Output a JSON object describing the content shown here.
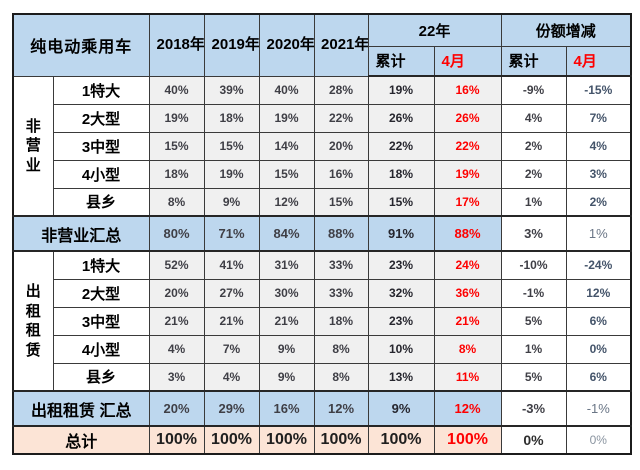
{
  "colors": {
    "header_bg": "#bdd7ee",
    "subtotal_bg": "#bdd7ee",
    "total_bg": "#fce4d6",
    "value_cell_bg": "#f0f0f0",
    "share_cell_bg": "#ffffff",
    "border": "#3a3a3a",
    "value_text": "#3f3f46",
    "red_text": "#fe0000"
  },
  "chart_data": {
    "type": "table",
    "title": "纯电动乘用车",
    "header": {
      "years": [
        "2018年",
        "2019年",
        "2020年",
        "2021年"
      ],
      "group_22": {
        "label": "22年",
        "sub": [
          "累计",
          "4月"
        ]
      },
      "group_share": {
        "label": "份额增减",
        "sub": [
          "累计",
          "4月"
        ]
      }
    },
    "columns": [
      "2018年",
      "2019年",
      "2020年",
      "2021年",
      "22年 累计",
      "22年 4月",
      "份额增减 累计",
      "份额增减 4月"
    ],
    "row_groups": [
      {
        "group_label": "非营业",
        "rows": [
          {
            "label": "1特大",
            "values": [
              "40%",
              "39%",
              "40%",
              "28%",
              "19%",
              "16%",
              "-9%",
              "-15%"
            ]
          },
          {
            "label": "2大型",
            "values": [
              "19%",
              "18%",
              "19%",
              "22%",
              "26%",
              "26%",
              "4%",
              "7%"
            ]
          },
          {
            "label": "3中型",
            "values": [
              "15%",
              "15%",
              "14%",
              "20%",
              "22%",
              "22%",
              "2%",
              "4%"
            ]
          },
          {
            "label": "4小型",
            "values": [
              "18%",
              "19%",
              "15%",
              "16%",
              "18%",
              "19%",
              "2%",
              "3%"
            ]
          },
          {
            "label": "县乡",
            "values": [
              "8%",
              "9%",
              "12%",
              "15%",
              "15%",
              "17%",
              "1%",
              "2%"
            ]
          }
        ],
        "subtotal": {
          "label": "非营业汇总",
          "values": [
            "80%",
            "71%",
            "84%",
            "88%",
            "91%",
            "88%",
            "3%",
            "1%"
          ]
        }
      },
      {
        "group_label": "出租租赁",
        "rows": [
          {
            "label": "1特大",
            "values": [
              "52%",
              "41%",
              "31%",
              "33%",
              "23%",
              "24%",
              "-10%",
              "-24%"
            ]
          },
          {
            "label": "2大型",
            "values": [
              "20%",
              "27%",
              "30%",
              "33%",
              "32%",
              "36%",
              "-1%",
              "12%"
            ]
          },
          {
            "label": "3中型",
            "values": [
              "21%",
              "21%",
              "21%",
              "18%",
              "23%",
              "21%",
              "5%",
              "6%"
            ]
          },
          {
            "label": "4小型",
            "values": [
              "4%",
              "7%",
              "9%",
              "8%",
              "10%",
              "8%",
              "1%",
              "0%"
            ]
          },
          {
            "label": "县乡",
            "values": [
              "3%",
              "4%",
              "9%",
              "8%",
              "13%",
              "11%",
              "5%",
              "6%"
            ]
          }
        ],
        "subtotal": {
          "label": "出租租赁 汇总",
          "values": [
            "20%",
            "29%",
            "16%",
            "12%",
            "9%",
            "12%",
            "-3%",
            "-1%"
          ]
        }
      }
    ],
    "total": {
      "label": "总计",
      "values": [
        "100%",
        "100%",
        "100%",
        "100%",
        "100%",
        "100%",
        "0%",
        "0%"
      ]
    }
  }
}
